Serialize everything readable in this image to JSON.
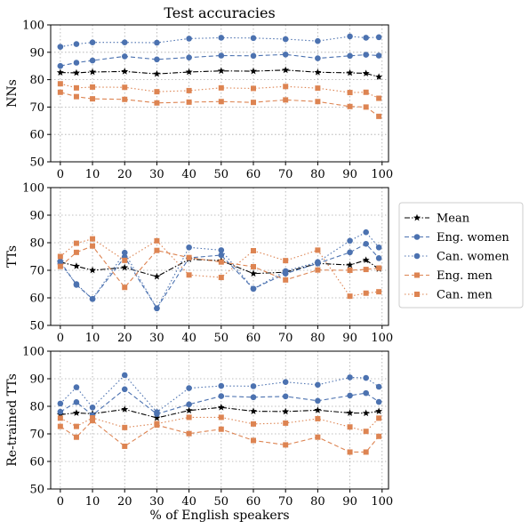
{
  "figure": {
    "title": "Test accuracies",
    "xlabel": "% of English speakers"
  },
  "chart_data": [
    {
      "type": "line",
      "ylabel": "NNs",
      "ylim": [
        50,
        100
      ],
      "yticks": [
        50,
        60,
        70,
        80,
        90,
        100
      ],
      "x": [
        0,
        5,
        10,
        20,
        30,
        40,
        50,
        60,
        70,
        80,
        90,
        95,
        99
      ],
      "xticks": [
        0,
        10,
        20,
        30,
        40,
        50,
        60,
        70,
        80,
        90,
        100
      ],
      "xlim": [
        -3,
        102
      ],
      "grid": true,
      "series": [
        {
          "name": "Mean",
          "values": [
            82.6,
            82.5,
            82.8,
            83.0,
            82.1,
            82.8,
            83.2,
            83.1,
            83.5,
            82.7,
            82.5,
            82.3,
            81.0
          ]
        },
        {
          "name": "Eng. women",
          "values": [
            85.0,
            86.2,
            87.0,
            88.5,
            87.4,
            88.1,
            88.8,
            88.7,
            89.2,
            87.8,
            88.7,
            89.1,
            88.8
          ]
        },
        {
          "name": "Can. women",
          "values": [
            92.0,
            93.0,
            93.6,
            93.6,
            93.5,
            95.0,
            95.3,
            95.2,
            94.8,
            94.1,
            95.8,
            95.3,
            95.5
          ]
        },
        {
          "name": "Eng. men",
          "values": [
            75.4,
            73.8,
            73.0,
            72.8,
            71.5,
            71.8,
            72.0,
            71.7,
            72.6,
            72.0,
            70.2,
            70.0,
            66.6
          ]
        },
        {
          "name": "Can. men",
          "values": [
            78.5,
            77.0,
            77.3,
            77.2,
            75.6,
            76.0,
            77.0,
            76.8,
            77.5,
            76.9,
            75.3,
            75.4,
            73.2
          ]
        }
      ]
    },
    {
      "type": "line",
      "ylabel": "TTs",
      "ylim": [
        50,
        100
      ],
      "yticks": [
        50,
        60,
        70,
        80,
        90,
        100
      ],
      "x": [
        0,
        5,
        10,
        20,
        30,
        40,
        50,
        60,
        70,
        80,
        90,
        95,
        99
      ],
      "xticks": [
        0,
        10,
        20,
        30,
        40,
        50,
        60,
        70,
        80,
        90,
        100
      ],
      "xlim": [
        -3,
        102
      ],
      "grid": true,
      "series": [
        {
          "name": "Mean",
          "values": [
            73.0,
            71.5,
            70.0,
            71.0,
            67.7,
            74.0,
            73.5,
            68.8,
            69.3,
            72.5,
            71.9,
            73.7,
            70.5
          ]
        },
        {
          "name": "Eng. women",
          "values": [
            73.2,
            64.7,
            59.6,
            74.8,
            56.2,
            74.5,
            75.5,
            63.3,
            68.8,
            72.5,
            76.5,
            79.6,
            74.4
          ]
        },
        {
          "name": "Can. women",
          "values": [
            72.4,
            65.0,
            59.6,
            76.4,
            56.2,
            78.3,
            77.3,
            63.3,
            69.7,
            73.0,
            80.7,
            83.8,
            78.3
          ]
        },
        {
          "name": "Eng. men",
          "values": [
            71.4,
            76.5,
            78.8,
            63.8,
            77.2,
            74.6,
            73.0,
            71.3,
            66.5,
            70.1,
            70.0,
            70.3,
            70.8
          ]
        },
        {
          "name": "Can. men",
          "values": [
            75.0,
            79.8,
            81.4,
            73.6,
            80.7,
            68.3,
            67.4,
            77.1,
            73.5,
            77.3,
            60.6,
            61.7,
            62.2
          ]
        }
      ]
    },
    {
      "type": "line",
      "ylabel": "Re-trained TTs",
      "ylim": [
        50,
        100
      ],
      "yticks": [
        50,
        60,
        70,
        80,
        90,
        100
      ],
      "x": [
        0,
        5,
        10,
        20,
        30,
        40,
        50,
        60,
        70,
        80,
        90,
        95,
        99
      ],
      "xticks": [
        0,
        10,
        20,
        30,
        40,
        50,
        60,
        70,
        80,
        90,
        100
      ],
      "xlim": [
        -3,
        102
      ],
      "grid": true,
      "series": [
        {
          "name": "Mean",
          "values": [
            77.0,
            77.6,
            77.3,
            78.9,
            75.8,
            78.5,
            79.6,
            78.2,
            78.1,
            78.6,
            77.6,
            77.5,
            78.2
          ]
        },
        {
          "name": "Eng. women",
          "values": [
            78.0,
            81.5,
            76.8,
            86.2,
            77.2,
            80.7,
            83.7,
            83.3,
            83.6,
            82.0,
            83.9,
            84.8,
            81.6
          ]
        },
        {
          "name": "Can. women",
          "values": [
            81.0,
            86.9,
            79.6,
            91.3,
            77.9,
            86.6,
            87.4,
            87.3,
            88.8,
            87.8,
            90.5,
            90.3,
            87.1
          ]
        },
        {
          "name": "Eng. men",
          "values": [
            72.7,
            68.8,
            74.8,
            65.5,
            73.2,
            70.1,
            71.7,
            67.6,
            66.0,
            68.8,
            63.4,
            63.4,
            69.1
          ]
        },
        {
          "name": "Can. men",
          "values": [
            75.7,
            72.7,
            75.8,
            72.3,
            73.7,
            76.0,
            76.0,
            73.6,
            73.9,
            75.5,
            72.5,
            70.9,
            75.7
          ]
        }
      ]
    }
  ],
  "styles": {
    "Mean": {
      "color": "#000000",
      "marker": "star",
      "dash": "6 2 1.5 2"
    },
    "Eng. women": {
      "color": "#4c72b0",
      "marker": "circle",
      "dash": "5 3"
    },
    "Can. women": {
      "color": "#4c72b0",
      "marker": "circle",
      "dash": "1.5 2.5"
    },
    "Eng. men": {
      "color": "#dd8452",
      "marker": "square",
      "dash": "5 3"
    },
    "Can. men": {
      "color": "#dd8452",
      "marker": "square",
      "dash": "1.5 2.5"
    }
  },
  "legend": {
    "placement": "right",
    "entries": [
      "Mean",
      "Eng. women",
      "Can. women",
      "Eng. men",
      "Can. men"
    ]
  }
}
